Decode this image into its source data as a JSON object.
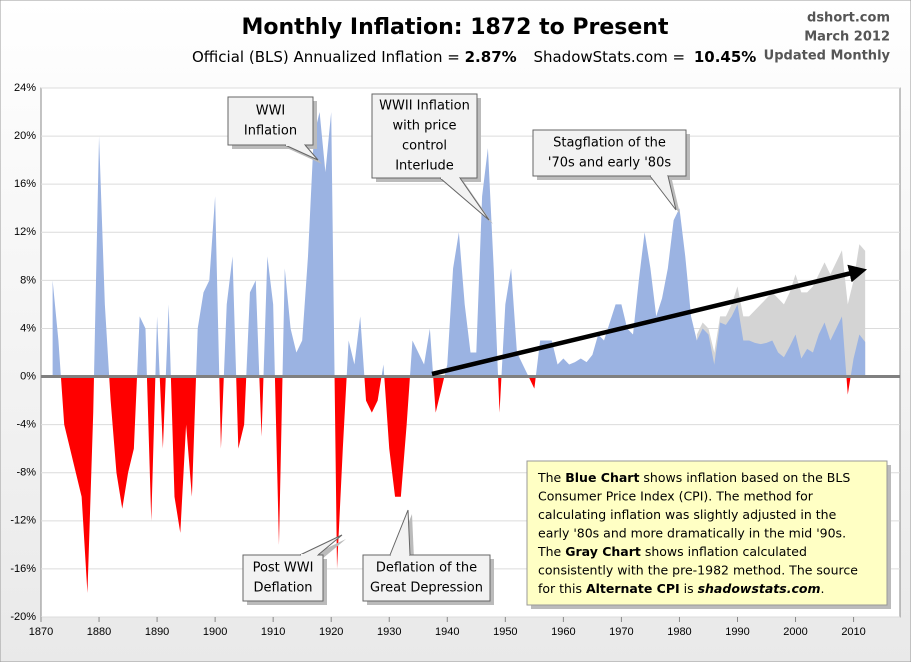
{
  "chart_data": {
    "type": "area",
    "title": "Monthly Inflation: 1872 to Present",
    "subtitle": {
      "official_label": "Official (BLS) Annualized Inflation =",
      "official_value": "2.87%",
      "shadow_label": "ShadowStats.com =",
      "shadow_value": "10.45%"
    },
    "source": [
      "dshort.com",
      "March 2012",
      "Updated Monthly"
    ],
    "x": [
      1872,
      1873,
      1874,
      1875,
      1876,
      1877,
      1878,
      1879,
      1880,
      1881,
      1882,
      1883,
      1884,
      1885,
      1886,
      1887,
      1888,
      1889,
      1890,
      1891,
      1892,
      1893,
      1894,
      1895,
      1896,
      1897,
      1898,
      1899,
      1900,
      1901,
      1902,
      1903,
      1904,
      1905,
      1906,
      1907,
      1908,
      1909,
      1910,
      1911,
      1912,
      1913,
      1914,
      1915,
      1916,
      1917,
      1918,
      1919,
      1920,
      1921,
      1922,
      1923,
      1924,
      1925,
      1926,
      1927,
      1928,
      1929,
      1930,
      1931,
      1932,
      1933,
      1934,
      1935,
      1936,
      1937,
      1938,
      1939,
      1940,
      1941,
      1942,
      1943,
      1944,
      1945,
      1946,
      1947,
      1948,
      1949,
      1950,
      1951,
      1952,
      1953,
      1954,
      1955,
      1956,
      1957,
      1958,
      1959,
      1960,
      1961,
      1962,
      1963,
      1964,
      1965,
      1966,
      1967,
      1968,
      1969,
      1970,
      1971,
      1972,
      1973,
      1974,
      1975,
      1976,
      1977,
      1978,
      1979,
      1980,
      1981,
      1982,
      1983,
      1984,
      1985,
      1986,
      1987,
      1988,
      1989,
      1990,
      1991,
      1992,
      1993,
      1994,
      1995,
      1996,
      1997,
      1998,
      1999,
      2000,
      2001,
      2002,
      2003,
      2004,
      2005,
      2006,
      2007,
      2008,
      2009,
      2010,
      2011,
      2012
    ],
    "series": [
      {
        "name": "ShadowStats Alternate CPI",
        "color": "#d4d4d4",
        "values": [
          null,
          null,
          null,
          null,
          null,
          null,
          null,
          null,
          null,
          null,
          null,
          null,
          null,
          null,
          null,
          null,
          null,
          null,
          null,
          null,
          null,
          null,
          null,
          null,
          null,
          null,
          null,
          null,
          null,
          null,
          null,
          null,
          null,
          null,
          null,
          null,
          null,
          null,
          null,
          null,
          null,
          null,
          null,
          null,
          null,
          null,
          null,
          null,
          null,
          null,
          null,
          null,
          null,
          null,
          null,
          null,
          null,
          null,
          null,
          null,
          null,
          null,
          null,
          null,
          null,
          null,
          null,
          null,
          null,
          null,
          null,
          null,
          null,
          null,
          null,
          null,
          null,
          null,
          null,
          null,
          null,
          null,
          null,
          null,
          null,
          null,
          null,
          null,
          null,
          null,
          null,
          null,
          null,
          null,
          null,
          null,
          null,
          null,
          null,
          null,
          null,
          null,
          null,
          null,
          null,
          null,
          null,
          null,
          null,
          null,
          null,
          3.5,
          4.5,
          4,
          2,
          5,
          5,
          6,
          7.5,
          5,
          5,
          5.5,
          6,
          6.5,
          7,
          6.5,
          6,
          7,
          8.5,
          7,
          7,
          7.5,
          8.5,
          9.5,
          8.5,
          9.5,
          10.5,
          6,
          8,
          11,
          10.45
        ]
      },
      {
        "name": "Official BLS CPI",
        "color": "#9bb3e2",
        "negative_color": "#ff0000",
        "values": [
          8,
          3,
          -4,
          -6,
          -8,
          -10,
          -18,
          -3,
          20,
          6,
          -2,
          -8,
          -11,
          -8,
          -6,
          5,
          4,
          -12,
          5,
          -6,
          6,
          -10,
          -13,
          -4,
          -10,
          4,
          7,
          8,
          15,
          -6,
          6,
          10,
          -6,
          -4,
          7,
          8,
          -5,
          10,
          6,
          -14,
          9,
          4,
          2,
          3,
          10,
          20,
          22,
          17,
          22,
          -16,
          -6,
          3,
          1,
          5,
          -2,
          -3,
          -2,
          1,
          -6,
          -10,
          -10,
          -4,
          3,
          2,
          1,
          4,
          -3,
          -1,
          1,
          9,
          12,
          6,
          2,
          2,
          15,
          19,
          9,
          -3,
          6,
          9,
          2,
          1,
          0,
          -1,
          3,
          3,
          3,
          1,
          1.5,
          1,
          1.2,
          1.5,
          1.2,
          1.8,
          3.5,
          3,
          4.5,
          6,
          6,
          4,
          3.5,
          8,
          12,
          9,
          5,
          6.5,
          9,
          13,
          14,
          10,
          5,
          3,
          4,
          3.5,
          1,
          4.5,
          4.3,
          5,
          6,
          3,
          3,
          2.8,
          2.7,
          2.8,
          3,
          2,
          1.6,
          2.5,
          3.5,
          1.5,
          2.3,
          2,
          3.5,
          4.5,
          3,
          4,
          5,
          -1.5,
          1.5,
          3.5,
          2.87
        ]
      }
    ],
    "xlim": [
      1870,
      2018
    ],
    "xticks": [
      1870,
      1880,
      1890,
      1900,
      1910,
      1920,
      1930,
      1940,
      1950,
      1960,
      1970,
      1980,
      1990,
      2000,
      2010
    ],
    "ylim": [
      -20,
      24
    ],
    "yticks": [
      {
        "value": -20,
        "label": "-20%"
      },
      {
        "value": -16,
        "label": "-16%"
      },
      {
        "value": -12,
        "label": "-12%"
      },
      {
        "value": -8,
        "label": "-8%"
      },
      {
        "value": -4,
        "label": "-4%"
      },
      {
        "value": 0,
        "label": "0%"
      },
      {
        "value": 4,
        "label": "4%"
      },
      {
        "value": 8,
        "label": "8%"
      },
      {
        "value": 12,
        "label": "12%"
      },
      {
        "value": 16,
        "label": "16%"
      },
      {
        "value": 20,
        "label": "20%"
      },
      {
        "value": 24,
        "label": "24%"
      }
    ],
    "grid": true,
    "annotations": [
      {
        "lines": [
          "WWI",
          "Inflation"
        ]
      },
      {
        "lines": [
          "WWII Inflation",
          "with price",
          "control",
          "Interlude"
        ]
      },
      {
        "lines": [
          "Stagflation of the",
          "'70s and early '80s"
        ]
      },
      {
        "lines": [
          "Post WWI",
          "Deflation"
        ]
      },
      {
        "lines": [
          "Deflation of the",
          "Great Depression"
        ]
      }
    ],
    "note": [
      [
        {
          "text": "The "
        },
        {
          "text": "Blue Chart",
          "bold": true
        },
        {
          "text": " shows inflation based on the BLS"
        }
      ],
      [
        {
          "text": "Consumer Price Index (CPI). The method  for"
        }
      ],
      [
        {
          "text": "calculating inflation was slightly adjusted in the"
        }
      ],
      [
        {
          "text": "early '80s and more  dramatically in the mid '90s."
        }
      ],
      [
        {
          "text": "The "
        },
        {
          "text": "Gray Chart",
          "bold": true
        },
        {
          "text": " shows inflation calculated"
        }
      ],
      [
        {
          "text": "consistently with the pre-1982 method.  The source"
        }
      ],
      [
        {
          "text": "for this "
        },
        {
          "text": "Alternate CPI",
          "bold": true
        },
        {
          "text": " is "
        },
        {
          "text": "shadowstats.com",
          "bold": true,
          "italic": true
        },
        {
          "text": "."
        }
      ]
    ]
  }
}
